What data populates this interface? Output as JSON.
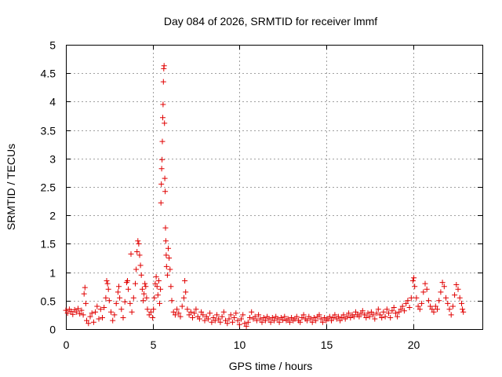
{
  "chart_data": {
    "type": "scatter",
    "title": "Day 084 of 2026, SRMTID for receiver lmmf",
    "xlabel": "GPS time / hours",
    "ylabel": "SRMTID / TECUs",
    "xlim": [
      0,
      24
    ],
    "ylim": [
      0,
      5
    ],
    "x_ticks": [
      0,
      5,
      10,
      15,
      20
    ],
    "x_tick_labels": [
      "0",
      "5",
      "10",
      "15",
      "20"
    ],
    "y_ticks": [
      0,
      0.5,
      1,
      1.5,
      2,
      2.5,
      3,
      3.5,
      4,
      4.5,
      5
    ],
    "y_tick_labels": [
      "0",
      "0.5",
      "1",
      "1.5",
      "2",
      "2.5",
      "3",
      "3.5",
      "4",
      "4.5",
      "5"
    ],
    "grid": true,
    "marker": "plus",
    "color": "#e00000",
    "series": [
      {
        "name": "SRMTID",
        "points": [
          [
            0.0,
            0.33
          ],
          [
            0.1,
            0.28
          ],
          [
            0.2,
            0.35
          ],
          [
            0.3,
            0.31
          ],
          [
            0.4,
            0.26
          ],
          [
            0.5,
            0.34
          ],
          [
            0.6,
            0.3
          ],
          [
            0.7,
            0.36
          ],
          [
            0.8,
            0.27
          ],
          [
            0.9,
            0.33
          ],
          [
            1.0,
            0.25
          ],
          [
            1.05,
            0.62
          ],
          [
            1.1,
            0.73
          ],
          [
            1.15,
            0.45
          ],
          [
            1.2,
            0.15
          ],
          [
            1.3,
            0.1
          ],
          [
            1.4,
            0.22
          ],
          [
            1.5,
            0.28
          ],
          [
            1.6,
            0.12
          ],
          [
            1.7,
            0.3
          ],
          [
            1.8,
            0.4
          ],
          [
            1.9,
            0.18
          ],
          [
            2.0,
            0.35
          ],
          [
            2.1,
            0.2
          ],
          [
            2.2,
            0.38
          ],
          [
            2.3,
            0.55
          ],
          [
            2.35,
            0.85
          ],
          [
            2.4,
            0.8
          ],
          [
            2.45,
            0.7
          ],
          [
            2.5,
            0.5
          ],
          [
            2.6,
            0.3
          ],
          [
            2.7,
            0.15
          ],
          [
            2.8,
            0.25
          ],
          [
            2.9,
            0.45
          ],
          [
            3.0,
            0.65
          ],
          [
            3.05,
            0.75
          ],
          [
            3.1,
            0.55
          ],
          [
            3.2,
            0.35
          ],
          [
            3.3,
            0.2
          ],
          [
            3.4,
            0.48
          ],
          [
            3.5,
            0.82
          ],
          [
            3.55,
            0.85
          ],
          [
            3.6,
            0.7
          ],
          [
            3.7,
            0.45
          ],
          [
            3.75,
            1.32
          ],
          [
            3.8,
            0.3
          ],
          [
            3.9,
            0.55
          ],
          [
            4.0,
            0.8
          ],
          [
            4.05,
            1.05
          ],
          [
            4.1,
            1.36
          ],
          [
            4.15,
            1.55
          ],
          [
            4.2,
            1.5
          ],
          [
            4.25,
            1.3
          ],
          [
            4.3,
            1.12
          ],
          [
            4.35,
            0.95
          ],
          [
            4.4,
            0.7
          ],
          [
            4.45,
            0.5
          ],
          [
            4.5,
            0.62
          ],
          [
            4.55,
            0.8
          ],
          [
            4.6,
            0.75
          ],
          [
            4.65,
            0.55
          ],
          [
            4.7,
            0.35
          ],
          [
            4.8,
            0.25
          ],
          [
            4.9,
            0.3
          ],
          [
            5.0,
            0.2
          ],
          [
            5.05,
            0.35
          ],
          [
            5.1,
            0.55
          ],
          [
            5.15,
            0.8
          ],
          [
            5.2,
            0.92
          ],
          [
            5.25,
            0.75
          ],
          [
            5.3,
            0.6
          ],
          [
            5.35,
            0.85
          ],
          [
            5.4,
            0.45
          ],
          [
            5.45,
            0.7
          ],
          [
            5.48,
            2.22
          ],
          [
            5.5,
            2.55
          ],
          [
            5.52,
            2.82
          ],
          [
            5.54,
            2.98
          ],
          [
            5.56,
            3.3
          ],
          [
            5.58,
            3.72
          ],
          [
            5.6,
            3.95
          ],
          [
            5.62,
            4.35
          ],
          [
            5.64,
            4.58
          ],
          [
            5.66,
            4.63
          ],
          [
            5.68,
            3.62
          ],
          [
            5.7,
            2.65
          ],
          [
            5.72,
            2.42
          ],
          [
            5.74,
            1.78
          ],
          [
            5.76,
            1.55
          ],
          [
            5.78,
            1.3
          ],
          [
            5.8,
            1.1
          ],
          [
            5.85,
            0.95
          ],
          [
            5.9,
            1.42
          ],
          [
            5.95,
            1.25
          ],
          [
            6.0,
            1.05
          ],
          [
            6.05,
            0.75
          ],
          [
            6.1,
            0.5
          ],
          [
            6.2,
            0.3
          ],
          [
            6.3,
            0.25
          ],
          [
            6.4,
            0.35
          ],
          [
            6.5,
            0.28
          ],
          [
            6.6,
            0.22
          ],
          [
            6.7,
            0.4
          ],
          [
            6.8,
            0.55
          ],
          [
            6.85,
            0.85
          ],
          [
            6.9,
            0.65
          ],
          [
            7.0,
            0.35
          ],
          [
            7.1,
            0.25
          ],
          [
            7.2,
            0.3
          ],
          [
            7.3,
            0.2
          ],
          [
            7.4,
            0.28
          ],
          [
            7.5,
            0.35
          ],
          [
            7.6,
            0.22
          ],
          [
            7.7,
            0.18
          ],
          [
            7.8,
            0.3
          ],
          [
            7.9,
            0.25
          ],
          [
            8.0,
            0.15
          ],
          [
            8.1,
            0.22
          ],
          [
            8.2,
            0.18
          ],
          [
            8.3,
            0.28
          ],
          [
            8.4,
            0.12
          ],
          [
            8.5,
            0.2
          ],
          [
            8.6,
            0.15
          ],
          [
            8.7,
            0.25
          ],
          [
            8.8,
            0.18
          ],
          [
            8.9,
            0.12
          ],
          [
            9.0,
            0.22
          ],
          [
            9.1,
            0.3
          ],
          [
            9.2,
            0.15
          ],
          [
            9.3,
            0.1
          ],
          [
            9.4,
            0.18
          ],
          [
            9.5,
            0.25
          ],
          [
            9.6,
            0.12
          ],
          [
            9.7,
            0.2
          ],
          [
            9.8,
            0.28
          ],
          [
            9.9,
            0.15
          ],
          [
            10.0,
            0.08
          ],
          [
            10.1,
            0.18
          ],
          [
            10.2,
            0.25
          ],
          [
            10.3,
            0.1
          ],
          [
            10.4,
            0.05
          ],
          [
            10.5,
            0.12
          ],
          [
            10.6,
            0.2
          ],
          [
            10.7,
            0.3
          ],
          [
            10.8,
            0.18
          ],
          [
            10.9,
            0.22
          ],
          [
            11.0,
            0.15
          ],
          [
            11.1,
            0.25
          ],
          [
            11.2,
            0.18
          ],
          [
            11.3,
            0.12
          ],
          [
            11.4,
            0.2
          ],
          [
            11.5,
            0.15
          ],
          [
            11.6,
            0.22
          ],
          [
            11.7,
            0.18
          ],
          [
            11.8,
            0.12
          ],
          [
            11.9,
            0.2
          ],
          [
            12.0,
            0.15
          ],
          [
            12.1,
            0.22
          ],
          [
            12.2,
            0.18
          ],
          [
            12.3,
            0.12
          ],
          [
            12.4,
            0.2
          ],
          [
            12.5,
            0.16
          ],
          [
            12.6,
            0.22
          ],
          [
            12.7,
            0.15
          ],
          [
            12.8,
            0.18
          ],
          [
            12.9,
            0.12
          ],
          [
            13.0,
            0.2
          ],
          [
            13.1,
            0.15
          ],
          [
            13.2,
            0.18
          ],
          [
            13.3,
            0.22
          ],
          [
            13.4,
            0.15
          ],
          [
            13.5,
            0.12
          ],
          [
            13.6,
            0.2
          ],
          [
            13.7,
            0.25
          ],
          [
            13.8,
            0.18
          ],
          [
            13.9,
            0.15
          ],
          [
            14.0,
            0.22
          ],
          [
            14.1,
            0.18
          ],
          [
            14.2,
            0.12
          ],
          [
            14.3,
            0.2
          ],
          [
            14.4,
            0.15
          ],
          [
            14.5,
            0.22
          ],
          [
            14.6,
            0.25
          ],
          [
            14.7,
            0.18
          ],
          [
            14.8,
            0.12
          ],
          [
            14.9,
            0.2
          ],
          [
            15.0,
            0.15
          ],
          [
            15.1,
            0.18
          ],
          [
            15.2,
            0.22
          ],
          [
            15.3,
            0.15
          ],
          [
            15.4,
            0.2
          ],
          [
            15.5,
            0.25
          ],
          [
            15.6,
            0.18
          ],
          [
            15.7,
            0.22
          ],
          [
            15.8,
            0.15
          ],
          [
            15.9,
            0.2
          ],
          [
            16.0,
            0.25
          ],
          [
            16.1,
            0.18
          ],
          [
            16.2,
            0.22
          ],
          [
            16.3,
            0.28
          ],
          [
            16.4,
            0.2
          ],
          [
            16.5,
            0.25
          ],
          [
            16.6,
            0.22
          ],
          [
            16.7,
            0.3
          ],
          [
            16.8,
            0.25
          ],
          [
            16.9,
            0.22
          ],
          [
            17.0,
            0.28
          ],
          [
            17.1,
            0.32
          ],
          [
            17.2,
            0.25
          ],
          [
            17.3,
            0.2
          ],
          [
            17.4,
            0.28
          ],
          [
            17.5,
            0.22
          ],
          [
            17.6,
            0.3
          ],
          [
            17.7,
            0.25
          ],
          [
            17.8,
            0.18
          ],
          [
            17.9,
            0.28
          ],
          [
            18.0,
            0.35
          ],
          [
            18.1,
            0.25
          ],
          [
            18.2,
            0.2
          ],
          [
            18.3,
            0.3
          ],
          [
            18.4,
            0.22
          ],
          [
            18.5,
            0.35
          ],
          [
            18.6,
            0.28
          ],
          [
            18.7,
            0.2
          ],
          [
            18.8,
            0.32
          ],
          [
            18.9,
            0.38
          ],
          [
            19.0,
            0.28
          ],
          [
            19.1,
            0.22
          ],
          [
            19.2,
            0.3
          ],
          [
            19.3,
            0.35
          ],
          [
            19.4,
            0.4
          ],
          [
            19.5,
            0.32
          ],
          [
            19.6,
            0.45
          ],
          [
            19.7,
            0.5
          ],
          [
            19.8,
            0.38
          ],
          [
            19.9,
            0.55
          ],
          [
            20.0,
            0.85
          ],
          [
            20.05,
            0.9
          ],
          [
            20.1,
            0.75
          ],
          [
            20.2,
            0.55
          ],
          [
            20.3,
            0.4
          ],
          [
            20.4,
            0.35
          ],
          [
            20.5,
            0.45
          ],
          [
            20.6,
            0.65
          ],
          [
            20.7,
            0.8
          ],
          [
            20.8,
            0.7
          ],
          [
            20.9,
            0.5
          ],
          [
            21.0,
            0.4
          ],
          [
            21.1,
            0.35
          ],
          [
            21.2,
            0.3
          ],
          [
            21.3,
            0.4
          ],
          [
            21.4,
            0.35
          ],
          [
            21.5,
            0.5
          ],
          [
            21.6,
            0.65
          ],
          [
            21.7,
            0.82
          ],
          [
            21.8,
            0.75
          ],
          [
            21.9,
            0.55
          ],
          [
            22.0,
            0.45
          ],
          [
            22.1,
            0.35
          ],
          [
            22.2,
            0.25
          ],
          [
            22.3,
            0.4
          ],
          [
            22.4,
            0.6
          ],
          [
            22.5,
            0.78
          ],
          [
            22.6,
            0.7
          ],
          [
            22.7,
            0.55
          ],
          [
            22.8,
            0.45
          ],
          [
            22.85,
            0.35
          ],
          [
            22.9,
            0.3
          ]
        ]
      }
    ]
  }
}
